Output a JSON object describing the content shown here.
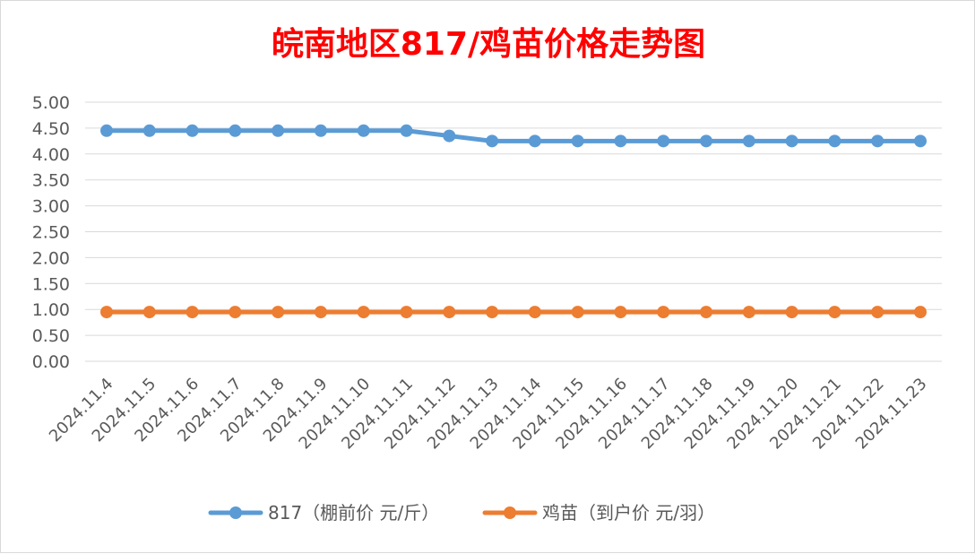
{
  "chart_data": {
    "type": "line",
    "title": "皖南地区817/鸡苗价格走势图",
    "categories": [
      "2024.11.4",
      "2024.11.5",
      "2024.11.6",
      "2024.11.7",
      "2024.11.8",
      "2024.11.9",
      "2024.11.10",
      "2024.11.11",
      "2024.11.12",
      "2024.11.13",
      "2024.11.14",
      "2024.11.15",
      "2024.11.16",
      "2024.11.17",
      "2024.11.18",
      "2024.11.19",
      "2024.11.20",
      "2024.11.21",
      "2024.11.22",
      "2024.11.23"
    ],
    "y_ticks": [
      "0.00",
      "0.50",
      "1.00",
      "1.50",
      "2.00",
      "2.50",
      "3.00",
      "3.50",
      "4.00",
      "4.50",
      "5.00"
    ],
    "ylim": [
      0,
      5
    ],
    "grid": true,
    "legend_position": "bottom",
    "series": [
      {
        "name": "817（棚前价 元/斤）",
        "color": "#5b9bd5",
        "values": [
          4.45,
          4.45,
          4.45,
          4.45,
          4.45,
          4.45,
          4.45,
          4.45,
          4.35,
          4.25,
          4.25,
          4.25,
          4.25,
          4.25,
          4.25,
          4.25,
          4.25,
          4.25,
          4.25,
          4.25
        ]
      },
      {
        "name": "鸡苗（到户价 元/羽）",
        "color": "#ed7d31",
        "values": [
          0.95,
          0.95,
          0.95,
          0.95,
          0.95,
          0.95,
          0.95,
          0.95,
          0.95,
          0.95,
          0.95,
          0.95,
          0.95,
          0.95,
          0.95,
          0.95,
          0.95,
          0.95,
          0.95,
          0.95
        ]
      }
    ]
  }
}
